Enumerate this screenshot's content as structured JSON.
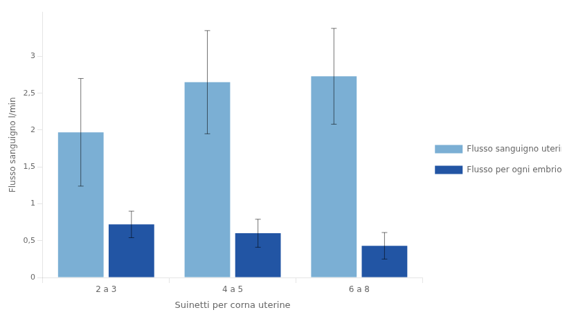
{
  "chart_data": {
    "type": "bar",
    "xlabel": "Suinetti per corna uterine",
    "ylabel": "Flusso sanguigno l/min",
    "categories": [
      "2 a 3",
      "4 a 5",
      "6 a 8"
    ],
    "series": [
      {
        "name": "Flusso sanguigno uterino totale",
        "color": "#7BAFD4",
        "values": [
          1.97,
          2.65,
          2.73
        ],
        "errors": [
          0.73,
          0.7,
          0.65
        ]
      },
      {
        "name": "Flusso per ogni embrione",
        "color": "#2255A4",
        "values": [
          0.72,
          0.6,
          0.43
        ],
        "errors": [
          0.18,
          0.19,
          0.18
        ]
      }
    ],
    "ylim": [
      0,
      3.6
    ],
    "yticks": [
      0,
      {
        "value": 0.5,
        "label": "0,5"
      },
      1,
      {
        "value": 1.5,
        "label": "1,5"
      },
      2,
      {
        "value": 2.5,
        "label": "2,5"
      },
      3
    ],
    "grid": false,
    "legend": "right"
  }
}
